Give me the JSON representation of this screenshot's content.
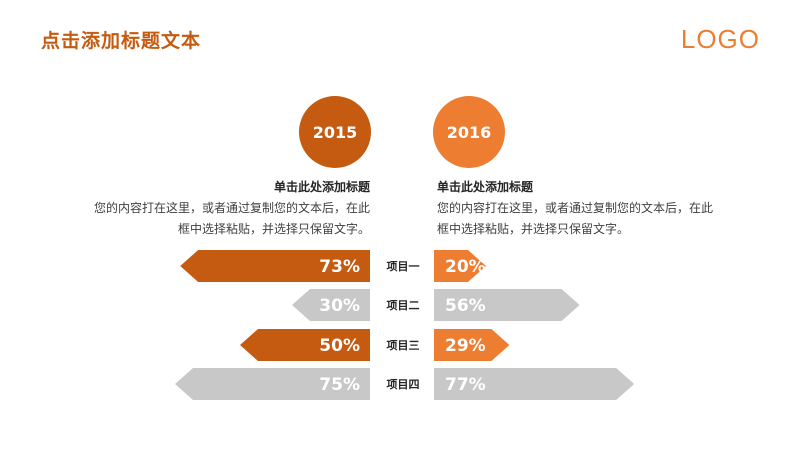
{
  "header": {
    "title": "点击添加标题文本",
    "logo": "LOGO"
  },
  "years": {
    "left": "2015",
    "right": "2016"
  },
  "left_text": {
    "subtitle": "单击此处添加标题",
    "line1": "您的内容打在这里，或者通过复制您的文本后，在此",
    "line2": "框中选择粘贴，并选择只保留文字。"
  },
  "right_text": {
    "subtitle": "单击此处添加标题",
    "line1": "您的内容打在这里，或者通过复制您的文本后，在此",
    "line2": "框中选择粘贴，并选择只保留文字。"
  },
  "colors": {
    "dark_orange": "#c55a11",
    "orange": "#ed7d31",
    "gray": "#c8c8c8"
  },
  "chart_data": {
    "type": "bar",
    "categories": [
      "项目一",
      "项目二",
      "项目三",
      "项目四"
    ],
    "series": [
      {
        "name": "2015",
        "values": [
          73,
          30,
          50,
          75
        ],
        "labels": [
          "73%",
          "30%",
          "50%",
          "75%"
        ],
        "highlight": [
          true,
          false,
          true,
          false
        ]
      },
      {
        "name": "2016",
        "values": [
          20,
          56,
          29,
          77
        ],
        "labels": [
          "20%",
          "56%",
          "29%",
          "77%"
        ],
        "highlight": [
          true,
          false,
          true,
          false
        ]
      }
    ]
  }
}
